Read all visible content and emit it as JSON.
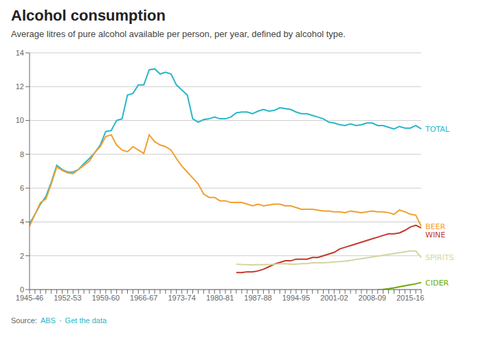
{
  "chart_data": {
    "type": "line",
    "title": "Alcohol consumption",
    "subtitle": "Average litres of pure alcohol available per person, per year, defined by alcohol type.",
    "annotations": [
      "Source:",
      "ABS",
      "·",
      "Get the data"
    ],
    "categories": [
      "1945-46",
      null,
      null,
      null,
      null,
      null,
      null,
      "1952-53",
      null,
      null,
      null,
      null,
      null,
      null,
      "1959-60",
      null,
      null,
      null,
      null,
      null,
      null,
      "1966-67",
      null,
      null,
      null,
      null,
      null,
      null,
      "1973-74",
      null,
      null,
      null,
      null,
      null,
      null,
      "1980-81",
      null,
      null,
      null,
      null,
      null,
      null,
      "1987-88",
      null,
      null,
      null,
      null,
      null,
      null,
      "1994-95",
      null,
      null,
      null,
      null,
      null,
      null,
      "2001-02",
      null,
      null,
      null,
      null,
      null,
      null,
      "2008-09",
      null,
      null,
      null,
      null,
      null,
      null,
      "2015-16",
      null,
      null
    ],
    "series": [
      {
        "name": "TOTAL",
        "color": "#29b5c8",
        "values": [
          3.9,
          4.45,
          5.05,
          5.5,
          6.35,
          7.35,
          7.1,
          6.95,
          6.95,
          7.1,
          7.45,
          7.75,
          8.1,
          8.55,
          9.35,
          9.4,
          10.0,
          10.1,
          11.5,
          11.6,
          12.1,
          12.1,
          13.0,
          13.05,
          12.75,
          12.85,
          12.75,
          12.1,
          11.8,
          11.5,
          10.1,
          9.9,
          10.05,
          10.1,
          10.2,
          10.1,
          10.1,
          10.2,
          10.45,
          10.5,
          10.5,
          10.4,
          10.55,
          10.65,
          10.55,
          10.6,
          10.75,
          10.7,
          10.65,
          10.5,
          10.4,
          10.4,
          10.3,
          10.2,
          10.1,
          9.9,
          9.85,
          9.75,
          9.7,
          9.8,
          9.7,
          9.75,
          9.85,
          9.85,
          9.7,
          9.7,
          9.6,
          9.5,
          9.65,
          9.55,
          9.55,
          9.7,
          9.5
        ]
      },
      {
        "name": "BEER",
        "color": "#f0a030",
        "values": [
          3.75,
          4.45,
          5.15,
          5.35,
          6.25,
          7.25,
          7.05,
          6.9,
          6.85,
          7.1,
          7.35,
          7.6,
          8.1,
          8.45,
          9.05,
          9.15,
          8.55,
          8.25,
          8.15,
          8.45,
          8.25,
          8.05,
          9.15,
          8.75,
          8.55,
          8.45,
          8.25,
          7.75,
          7.3,
          6.95,
          6.6,
          6.25,
          5.65,
          5.45,
          5.45,
          5.25,
          5.25,
          5.15,
          5.15,
          5.15,
          5.05,
          4.95,
          5.05,
          4.95,
          5.0,
          5.05,
          5.05,
          4.95,
          4.95,
          4.85,
          4.75,
          4.75,
          4.75,
          4.7,
          4.65,
          4.65,
          4.6,
          4.6,
          4.55,
          4.65,
          4.6,
          4.55,
          4.6,
          4.65,
          4.6,
          4.6,
          4.55,
          4.45,
          4.7,
          4.6,
          4.45,
          4.4,
          3.75
        ]
      },
      {
        "name": "WINE",
        "color": "#c0392b",
        "values": [
          null,
          null,
          null,
          null,
          null,
          null,
          null,
          null,
          null,
          null,
          null,
          null,
          null,
          null,
          null,
          null,
          null,
          null,
          null,
          null,
          null,
          null,
          null,
          null,
          null,
          null,
          null,
          null,
          null,
          null,
          null,
          null,
          null,
          null,
          null,
          null,
          null,
          null,
          1.0,
          1.0,
          1.05,
          1.05,
          1.1,
          1.2,
          1.35,
          1.5,
          1.6,
          1.7,
          1.7,
          1.8,
          1.8,
          1.8,
          1.9,
          1.9,
          2.0,
          2.1,
          2.2,
          2.4,
          2.5,
          2.6,
          2.7,
          2.8,
          2.9,
          3.0,
          3.1,
          3.2,
          3.3,
          3.3,
          3.35,
          3.5,
          3.7,
          3.8,
          3.65
        ]
      },
      {
        "name": "SPIRITS",
        "color": "#d4d4a0",
        "values": [
          null,
          null,
          null,
          null,
          null,
          null,
          null,
          null,
          null,
          null,
          null,
          null,
          null,
          null,
          null,
          null,
          null,
          null,
          null,
          null,
          null,
          null,
          null,
          null,
          null,
          null,
          null,
          null,
          null,
          null,
          null,
          null,
          null,
          null,
          null,
          null,
          null,
          null,
          1.5,
          1.48,
          1.47,
          1.46,
          1.47,
          1.47,
          1.48,
          1.49,
          1.52,
          1.53,
          1.5,
          1.5,
          1.53,
          1.53,
          1.58,
          1.58,
          1.58,
          1.6,
          1.63,
          1.65,
          1.68,
          1.72,
          1.78,
          1.83,
          1.88,
          1.93,
          1.98,
          2.03,
          2.08,
          2.13,
          2.18,
          2.23,
          2.28,
          2.28,
          1.9
        ]
      },
      {
        "name": "CIDER",
        "color": "#6aaa00",
        "values": [
          null,
          null,
          null,
          null,
          null,
          null,
          null,
          null,
          null,
          null,
          null,
          null,
          null,
          null,
          null,
          null,
          null,
          null,
          null,
          null,
          null,
          null,
          null,
          null,
          null,
          null,
          null,
          null,
          null,
          null,
          null,
          null,
          null,
          null,
          null,
          null,
          null,
          null,
          null,
          null,
          null,
          null,
          null,
          null,
          null,
          null,
          null,
          null,
          null,
          null,
          null,
          null,
          null,
          null,
          null,
          null,
          null,
          null,
          null,
          null,
          null,
          null,
          null,
          null,
          0.0,
          0.01,
          0.05,
          0.1,
          0.16,
          0.22,
          0.28,
          0.34,
          0.42
        ]
      }
    ],
    "ylim": [
      0,
      14
    ],
    "yticks": [
      0,
      2,
      4,
      6,
      8,
      10,
      12,
      14
    ],
    "grid": true
  }
}
